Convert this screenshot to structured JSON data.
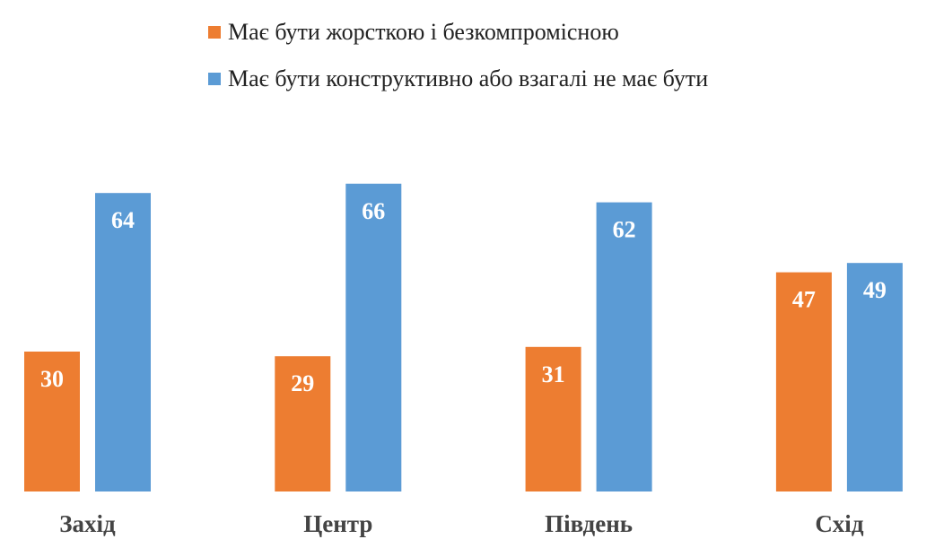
{
  "chart_data": {
    "type": "bar",
    "categories": [
      "Захід",
      "Центр",
      "Південь",
      "Схід"
    ],
    "series": [
      {
        "name": "Має бути жорсткою і безкомпромісною",
        "color": "#ED7D31",
        "values": [
          30,
          29,
          31,
          47
        ]
      },
      {
        "name": "Має бути конструктивно або взагалі не має бути",
        "color": "#5B9BD5",
        "values": [
          64,
          66,
          62,
          49
        ]
      }
    ],
    "title": "",
    "xlabel": "",
    "ylabel": "",
    "ylim": [
      0,
      70
    ],
    "grid": false,
    "legend_position": "top"
  }
}
